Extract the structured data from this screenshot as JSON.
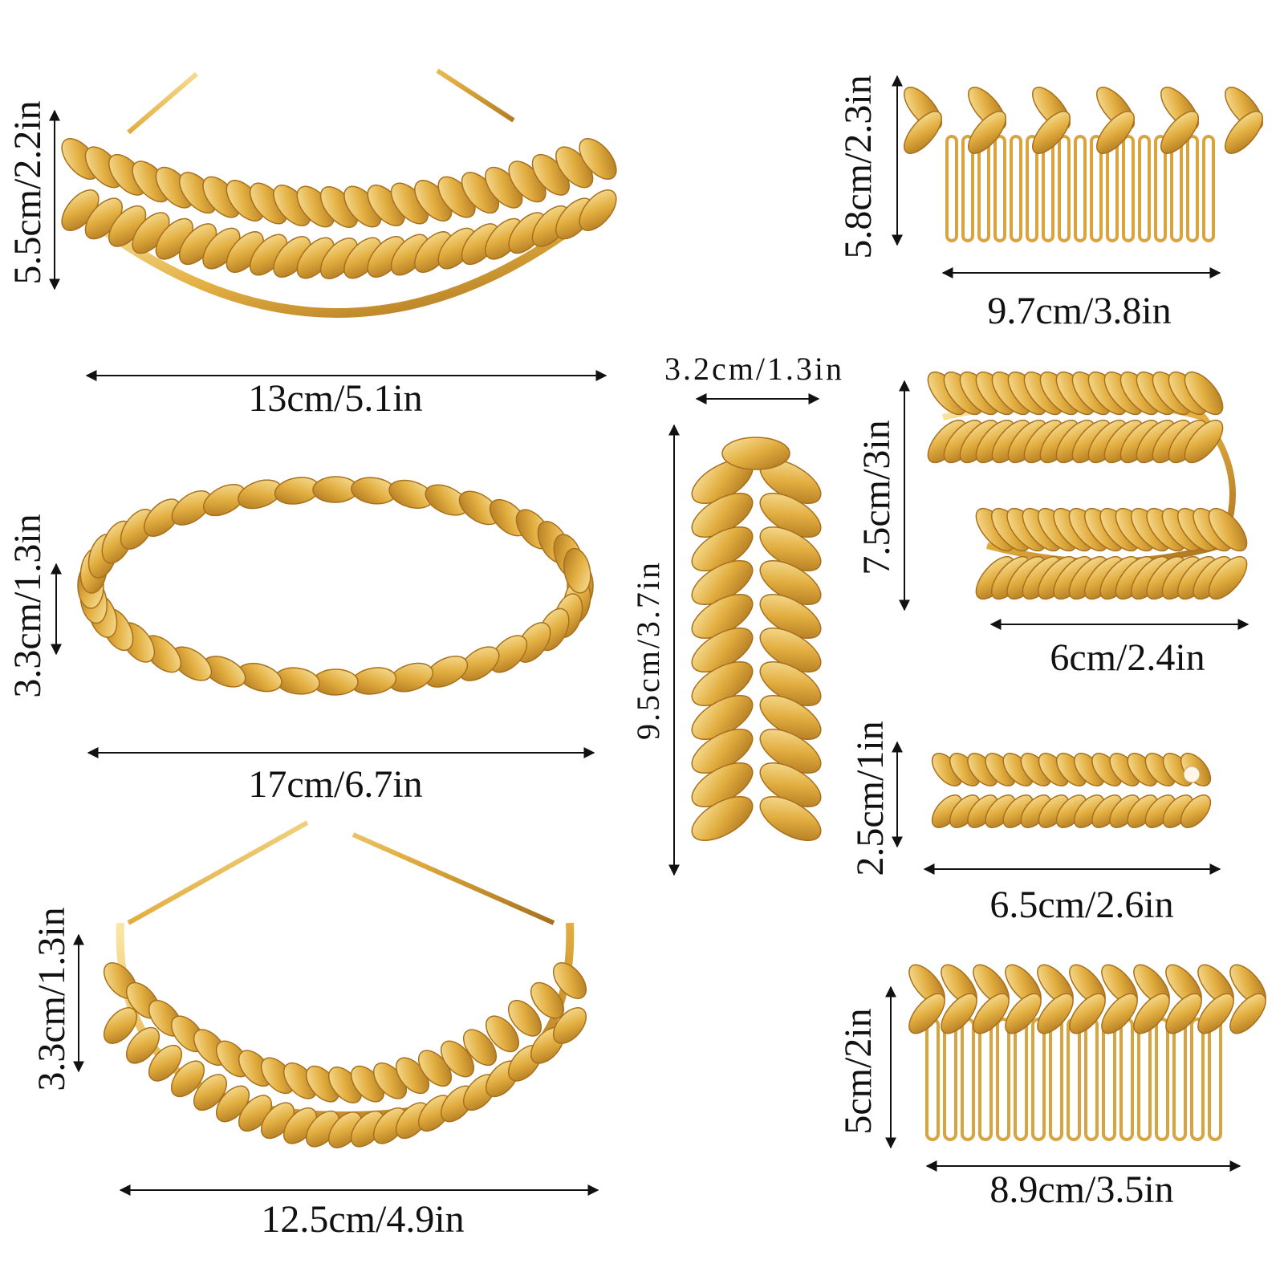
{
  "colors": {
    "gold_light": "#f7dc8c",
    "gold": "#e0ac3c",
    "gold_dark": "#a8701c",
    "arrow": "#111111"
  },
  "measurements": [
    {
      "id": "headband-1-height",
      "text": "5.5cm/2.2in",
      "orientation": "vertical"
    },
    {
      "id": "headband-1-width",
      "text": "13cm/5.1in",
      "orientation": "horizontal"
    },
    {
      "id": "wreath-height",
      "text": "3.3cm/1.3in",
      "orientation": "vertical"
    },
    {
      "id": "wreath-width",
      "text": "17cm/6.7in",
      "orientation": "horizontal"
    },
    {
      "id": "headband-2-height",
      "text": "3.3cm/1.3in",
      "orientation": "vertical"
    },
    {
      "id": "headband-2-width",
      "text": "12.5cm/4.9in",
      "orientation": "horizontal"
    },
    {
      "id": "leaf-pin-width",
      "text": "3.2cm/1.3in",
      "orientation": "horizontal"
    },
    {
      "id": "leaf-pin-height",
      "text": "9.5cm/3.7in",
      "orientation": "vertical"
    },
    {
      "id": "comb-1-height",
      "text": "5.8cm/2.3in",
      "orientation": "vertical"
    },
    {
      "id": "comb-1-width",
      "text": "9.7cm/3.8in",
      "orientation": "horizontal"
    },
    {
      "id": "armband-height",
      "text": "7.5cm/3in",
      "orientation": "vertical"
    },
    {
      "id": "armband-width",
      "text": "6cm/2.4in",
      "orientation": "horizontal"
    },
    {
      "id": "clip-height",
      "text": "2.5cm/1in",
      "orientation": "vertical"
    },
    {
      "id": "clip-width",
      "text": "6.5cm/2.6in",
      "orientation": "horizontal"
    },
    {
      "id": "comb-2-height",
      "text": "5cm/2in",
      "orientation": "vertical"
    },
    {
      "id": "comb-2-width",
      "text": "8.9cm/3.5in",
      "orientation": "horizontal"
    }
  ]
}
